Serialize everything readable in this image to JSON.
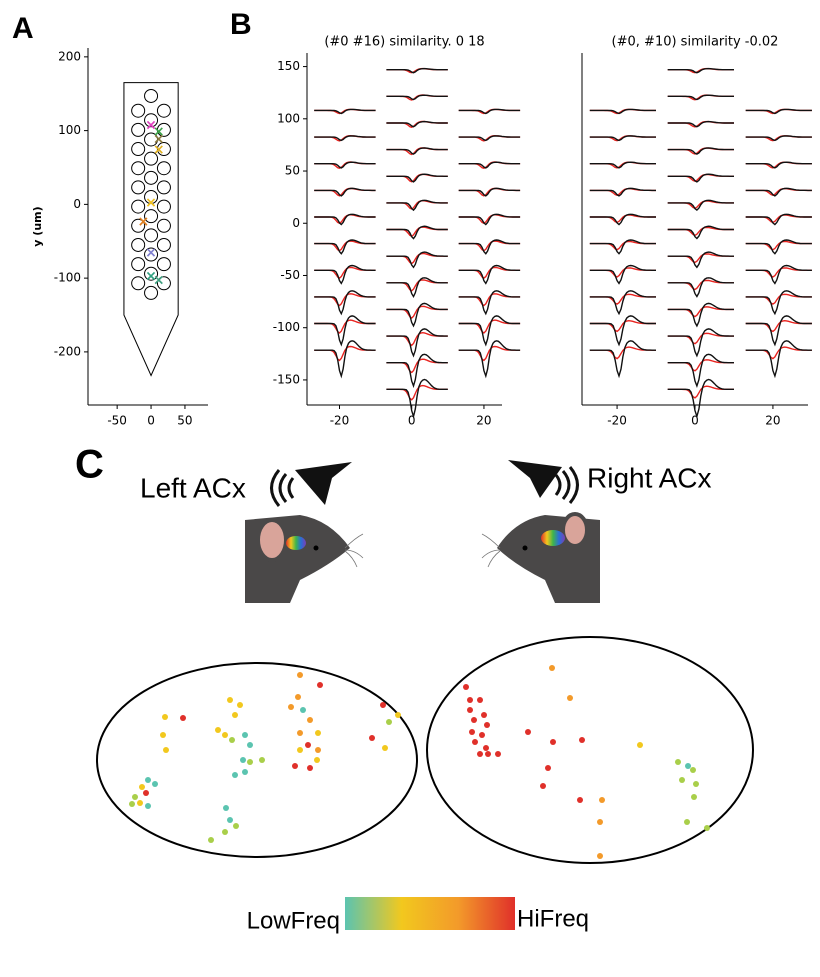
{
  "panels": {
    "a": "A",
    "b": "B",
    "c": "C"
  },
  "chart_data": [
    {
      "type": "probe",
      "ylabel": "y (um)",
      "xlim": [
        -93,
        84
      ],
      "ylim": [
        -272,
        212
      ],
      "xticks": [
        -50,
        0,
        50
      ],
      "yticks": [
        200,
        100,
        0,
        -100,
        -200
      ],
      "color": "#000000"
    },
    {
      "type": "waveform",
      "title": "(#0  #16) similarity. 0 18",
      "xlim": [
        -29,
        25
      ],
      "ylim": [
        -174,
        163
      ],
      "xticks": [
        -20,
        0,
        20
      ],
      "yticks": [
        150,
        100,
        50,
        0,
        -50,
        -100,
        -150
      ],
      "colors": [
        "#e8231f",
        "#111111"
      ]
    },
    {
      "type": "waveform",
      "title": "(#0, #10) similarity -0.02",
      "xlim": [
        -29,
        29
      ],
      "ylim": [
        -174,
        163
      ],
      "xticks": [
        -20,
        0,
        20
      ],
      "colors": [
        "#e8231f",
        "#111111"
      ]
    }
  ],
  "diagram": {
    "left_label": "Left ACx",
    "right_label": "Right ACx",
    "colorbar": {
      "low": "LowFreq",
      "high": "HiFreq",
      "colors": [
        "#5bc4b0",
        "#a9cf4a",
        "#f2c81e",
        "#f39a2a",
        "#e0302a"
      ]
    }
  }
}
